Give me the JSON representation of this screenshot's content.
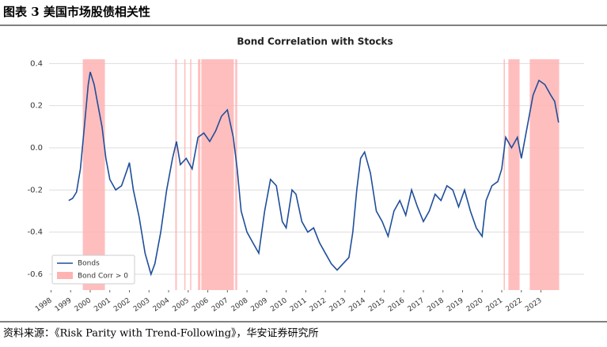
{
  "header": "图表 3  美国市场股债相关性",
  "source": "资料来源：《Risk Parity with Trend-Following》，华安证券研究所",
  "chart_data": {
    "type": "line",
    "title": "Bond Correlation with Stocks",
    "x": [
      1998.9,
      1999.1,
      1999.3,
      1999.5,
      1999.7,
      1999.9,
      2000.0,
      2000.2,
      2000.4,
      2000.6,
      2000.8,
      2001.0,
      2001.3,
      2001.6,
      2001.9,
      2002.0,
      2002.2,
      2002.5,
      2002.8,
      2003.1,
      2003.3,
      2003.6,
      2003.9,
      2004.2,
      2004.4,
      2004.6,
      2004.9,
      2005.2,
      2005.5,
      2005.8,
      2006.1,
      2006.4,
      2006.7,
      2007.0,
      2007.3,
      2007.5,
      2007.7,
      2008.0,
      2008.3,
      2008.6,
      2008.9,
      2009.2,
      2009.5,
      2009.8,
      2010.0,
      2010.3,
      2010.5,
      2010.8,
      2011.1,
      2011.4,
      2011.7,
      2012.0,
      2012.3,
      2012.6,
      2012.9,
      2013.2,
      2013.4,
      2013.6,
      2013.8,
      2014.0,
      2014.3,
      2014.6,
      2014.9,
      2015.2,
      2015.5,
      2015.8,
      2016.1,
      2016.4,
      2016.7,
      2017.0,
      2017.3,
      2017.6,
      2017.9,
      2018.2,
      2018.5,
      2018.8,
      2019.1,
      2019.4,
      2019.7,
      2020.0,
      2020.2,
      2020.5,
      2020.8,
      2021.0,
      2021.2,
      2021.5,
      2021.8,
      2022.0,
      2022.3,
      2022.6,
      2022.9,
      2023.2,
      2023.5,
      2023.7,
      2023.9
    ],
    "series": [
      {
        "name": "Bonds",
        "color": "#1f4e9a",
        "values": [
          -0.25,
          -0.24,
          -0.21,
          -0.1,
          0.1,
          0.3,
          0.36,
          0.3,
          0.2,
          0.1,
          -0.05,
          -0.15,
          -0.2,
          -0.18,
          -0.1,
          -0.07,
          -0.2,
          -0.33,
          -0.5,
          -0.6,
          -0.55,
          -0.4,
          -0.2,
          -0.05,
          0.03,
          -0.08,
          -0.05,
          -0.1,
          0.05,
          0.07,
          0.03,
          0.08,
          0.15,
          0.18,
          0.05,
          -0.1,
          -0.3,
          -0.4,
          -0.45,
          -0.5,
          -0.3,
          -0.15,
          -0.18,
          -0.35,
          -0.38,
          -0.2,
          -0.22,
          -0.35,
          -0.4,
          -0.38,
          -0.45,
          -0.5,
          -0.55,
          -0.58,
          -0.55,
          -0.52,
          -0.4,
          -0.2,
          -0.05,
          -0.02,
          -0.12,
          -0.3,
          -0.35,
          -0.42,
          -0.3,
          -0.25,
          -0.32,
          -0.2,
          -0.28,
          -0.35,
          -0.3,
          -0.22,
          -0.25,
          -0.18,
          -0.2,
          -0.28,
          -0.2,
          -0.3,
          -0.38,
          -0.42,
          -0.25,
          -0.18,
          -0.16,
          -0.1,
          0.05,
          0.0,
          0.05,
          -0.05,
          0.1,
          0.25,
          0.32,
          0.3,
          0.25,
          0.22,
          0.12
        ]
      }
    ],
    "spans": {
      "name": "Bond Corr > 0",
      "color": "#ffb3b3",
      "ranges": [
        [
          1999.62,
          2000.75
        ],
        [
          2004.34,
          2004.42
        ],
        [
          2004.8,
          2004.86
        ],
        [
          2005.1,
          2005.16
        ],
        [
          2005.5,
          2005.62
        ],
        [
          2005.67,
          2007.33
        ],
        [
          2007.4,
          2007.5
        ],
        [
          2021.1,
          2021.16
        ],
        [
          2021.34,
          2021.91
        ],
        [
          2022.43,
          2023.93
        ]
      ]
    },
    "xlim": [
      1997.9,
      2025.2
    ],
    "xticks": [
      1998,
      1999,
      2000,
      2001,
      2002,
      2003,
      2004,
      2005,
      2006,
      2007,
      2008,
      2009,
      2010,
      2011,
      2012,
      2013,
      2014,
      2015,
      2016,
      2017,
      2018,
      2019,
      2020,
      2021,
      2022,
      2023
    ],
    "ylim": [
      -0.675,
      0.42
    ],
    "yticks": [
      0.4,
      0.2,
      {
        "value": 0,
        "label": "0.0"
      },
      -0.2,
      -0.4,
      -0.6
    ],
    "grid": true,
    "legend": "lower left"
  }
}
